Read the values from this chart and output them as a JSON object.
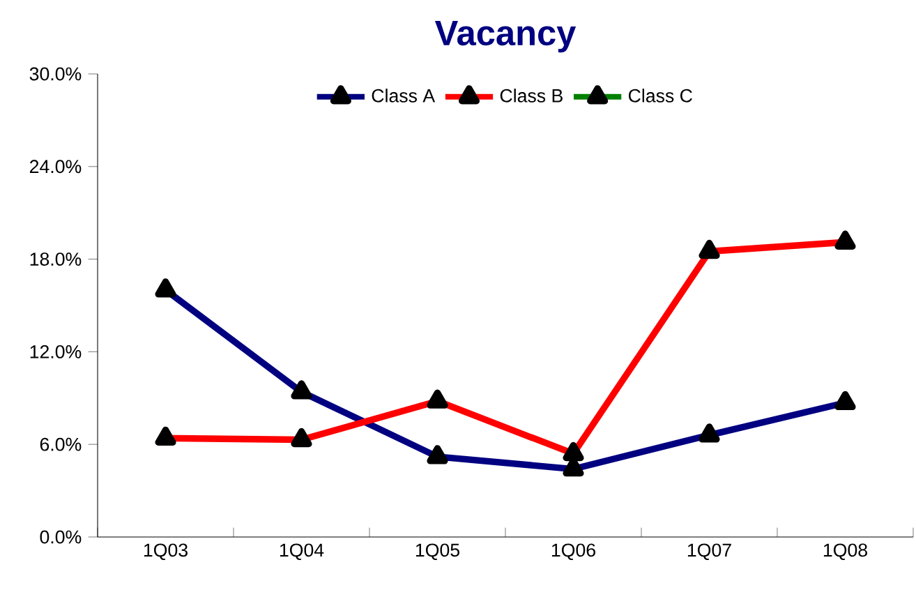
{
  "chart_data": {
    "type": "line",
    "title": "Vacancy",
    "categories": [
      "1Q03",
      "1Q04",
      "1Q05",
      "1Q06",
      "1Q07",
      "1Q08"
    ],
    "series": [
      {
        "name": "Class A",
        "color": "#000080",
        "values": [
          16.0,
          9.4,
          5.2,
          4.4,
          6.6,
          8.7
        ]
      },
      {
        "name": "Class B",
        "color": "#ff0000",
        "values": [
          6.4,
          6.3,
          8.8,
          5.4,
          18.5,
          19.1
        ]
      },
      {
        "name": "Class C",
        "color": "#008000",
        "values": [
          null,
          null,
          null,
          null,
          null,
          null
        ]
      }
    ],
    "ylim": [
      0,
      30
    ],
    "yticks": [
      {
        "value": 0,
        "label": "0.0%"
      },
      {
        "value": 6,
        "label": "6.0%"
      },
      {
        "value": 12,
        "label": "12.0%"
      },
      {
        "value": 18,
        "label": "18.0%"
      },
      {
        "value": 24,
        "label": "24.0%"
      },
      {
        "value": 30,
        "label": "30.0%"
      }
    ],
    "grid": false,
    "legend": "top",
    "marker": "triangle",
    "line_style": "solid"
  }
}
